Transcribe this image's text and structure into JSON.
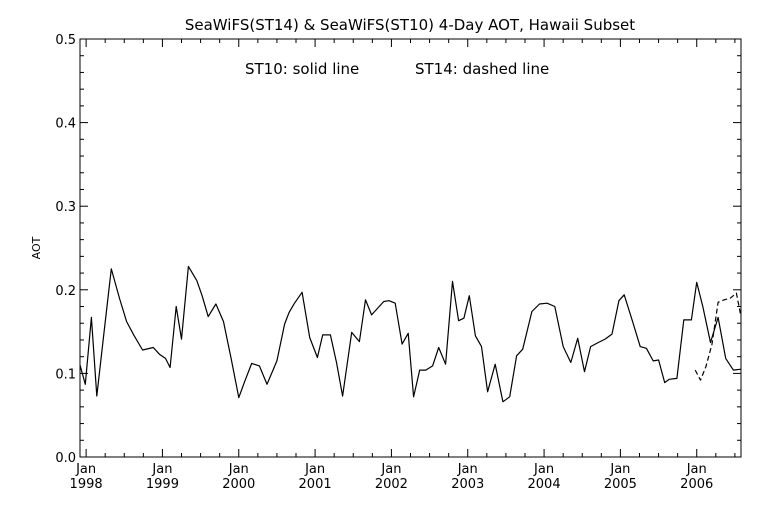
{
  "chart_data": {
    "type": "line",
    "title": "SeaWiFS(ST14) & SeaWiFS(ST10) 4-Day AOT, Hawaii Subset",
    "annotations": [
      "ST10: solid line",
      "ST14: dashed line"
    ],
    "ylabel": "AOT",
    "xlabel": "",
    "xlim": [
      1997.92,
      2006.58
    ],
    "ylim": [
      0.0,
      0.5
    ],
    "yticks": [
      "0.0",
      "0.1",
      "0.2",
      "0.3",
      "0.4",
      "0.5"
    ],
    "xticks": [
      {
        "month": "Jan",
        "year": "1998"
      },
      {
        "month": "Jan",
        "year": "1999"
      },
      {
        "month": "Jan",
        "year": "2000"
      },
      {
        "month": "Jan",
        "year": "2001"
      },
      {
        "month": "Jan",
        "year": "2002"
      },
      {
        "month": "Jan",
        "year": "2003"
      },
      {
        "month": "Jan",
        "year": "2004"
      },
      {
        "month": "Jan",
        "year": "2005"
      },
      {
        "month": "Jan",
        "year": "2006"
      }
    ],
    "grid": false,
    "series": [
      {
        "name": "ST10",
        "style": "solid",
        "x": [
          1997.92,
          1997.99,
          1998.07,
          1998.14,
          1998.24,
          1998.33,
          1998.44,
          1998.53,
          1998.63,
          1998.74,
          1998.88,
          1998.96,
          1999.04,
          1999.1,
          1999.18,
          1999.25,
          1999.34,
          1999.45,
          1999.52,
          1999.6,
          1999.7,
          1999.8,
          1999.9,
          2000.0,
          2000.08,
          2000.17,
          2000.27,
          2000.37,
          2000.5,
          2000.6,
          2000.66,
          2000.73,
          2000.83,
          2000.93,
          2001.03,
          2001.1,
          2001.2,
          2001.28,
          2001.36,
          2001.48,
          2001.58,
          2001.66,
          2001.74,
          2001.84,
          2001.9,
          2001.97,
          2002.05,
          2002.14,
          2002.22,
          2002.29,
          2002.37,
          2002.45,
          2002.54,
          2002.62,
          2002.71,
          2002.8,
          2002.88,
          2002.95,
          2003.02,
          2003.1,
          2003.18,
          2003.26,
          2003.36,
          2003.46,
          2003.55,
          2003.64,
          2003.72,
          2003.84,
          2003.94,
          2004.04,
          2004.14,
          2004.25,
          2004.35,
          2004.44,
          2004.53,
          2004.61,
          2004.71,
          2004.8,
          2004.89,
          2004.98,
          2005.05,
          2005.16,
          2005.26,
          2005.34,
          2005.43,
          2005.5,
          2005.58,
          2005.64,
          2005.74,
          2005.83,
          2005.93,
          2006.0,
          2006.08,
          2006.18,
          2006.28,
          2006.38,
          2006.48,
          2006.58
        ],
        "y": [
          0.11,
          0.087,
          0.167,
          0.073,
          0.153,
          0.225,
          0.189,
          0.162,
          0.145,
          0.128,
          0.131,
          0.123,
          0.118,
          0.107,
          0.18,
          0.141,
          0.228,
          0.211,
          0.193,
          0.168,
          0.183,
          0.162,
          0.118,
          0.071,
          0.091,
          0.112,
          0.109,
          0.087,
          0.115,
          0.159,
          0.173,
          0.184,
          0.197,
          0.143,
          0.119,
          0.146,
          0.146,
          0.113,
          0.073,
          0.149,
          0.138,
          0.188,
          0.17,
          0.18,
          0.186,
          0.187,
          0.184,
          0.135,
          0.148,
          0.072,
          0.104,
          0.104,
          0.109,
          0.131,
          0.111,
          0.21,
          0.163,
          0.166,
          0.193,
          0.145,
          0.132,
          0.078,
          0.111,
          0.066,
          0.072,
          0.121,
          0.129,
          0.174,
          0.183,
          0.184,
          0.18,
          0.132,
          0.113,
          0.142,
          0.102,
          0.132,
          0.137,
          0.141,
          0.147,
          0.187,
          0.194,
          0.162,
          0.132,
          0.13,
          0.115,
          0.116,
          0.089,
          0.093,
          0.094,
          0.164,
          0.164,
          0.209,
          0.18,
          0.137,
          0.167,
          0.118,
          0.104,
          0.105
        ]
      },
      {
        "name": "ST14",
        "style": "dashed",
        "x": [
          2005.98,
          2006.05,
          2006.12,
          2006.2,
          2006.28,
          2006.36,
          2006.44,
          2006.52,
          2006.58
        ],
        "y": [
          0.104,
          0.092,
          0.108,
          0.135,
          0.185,
          0.188,
          0.19,
          0.196,
          0.168
        ]
      }
    ]
  }
}
